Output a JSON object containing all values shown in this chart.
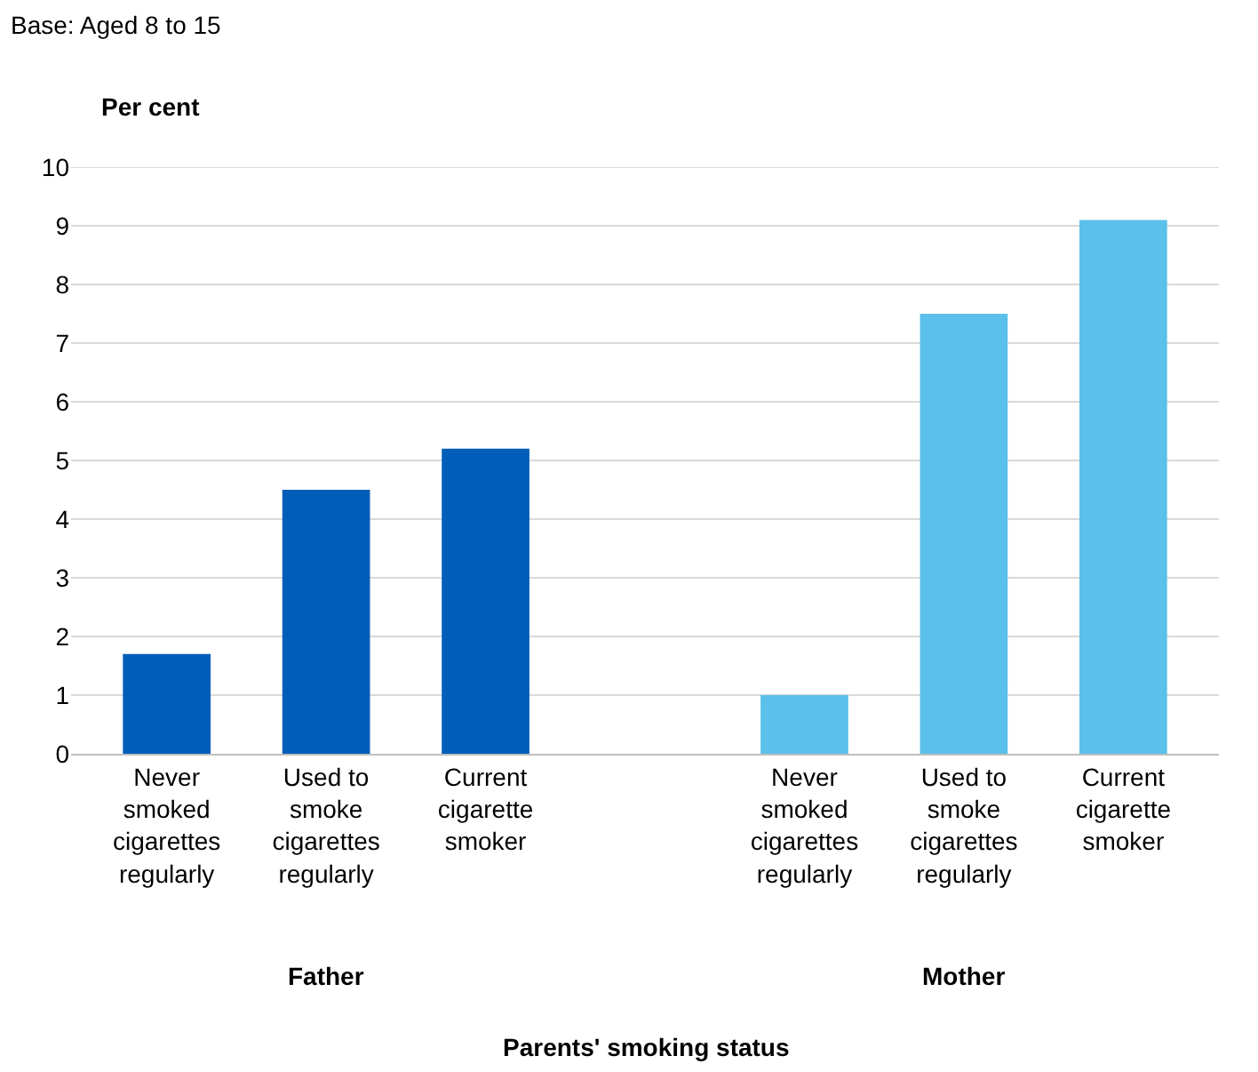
{
  "chart_data": {
    "type": "bar",
    "title": "Base: Aged 8 to 15",
    "ylabel": "Per cent",
    "annotations": [
      "Father",
      "Mother",
      "Parents' smoking status"
    ],
    "categories": [
      "Never smoked cigarettes regularly",
      "Used to smoke cigarettes regularly",
      "Current cigarette smoker",
      null,
      "Never smoked cigarettes regularly",
      "Used to smoke cigarettes regularly",
      "Current cigarette smoker"
    ],
    "values": [
      1.7,
      4.5,
      5.2,
      null,
      1.0,
      7.5,
      9.1
    ],
    "colors": [
      "#005eb8",
      "#005eb8",
      "#005eb8",
      null,
      "#5bc0eb",
      "#5bc0eb",
      "#5bc0eb"
    ],
    "ylim": [
      0,
      10
    ],
    "yticks": [
      0,
      1,
      2,
      3,
      4,
      5,
      6,
      7,
      8,
      9,
      10
    ],
    "grid": "y",
    "legend": false
  }
}
